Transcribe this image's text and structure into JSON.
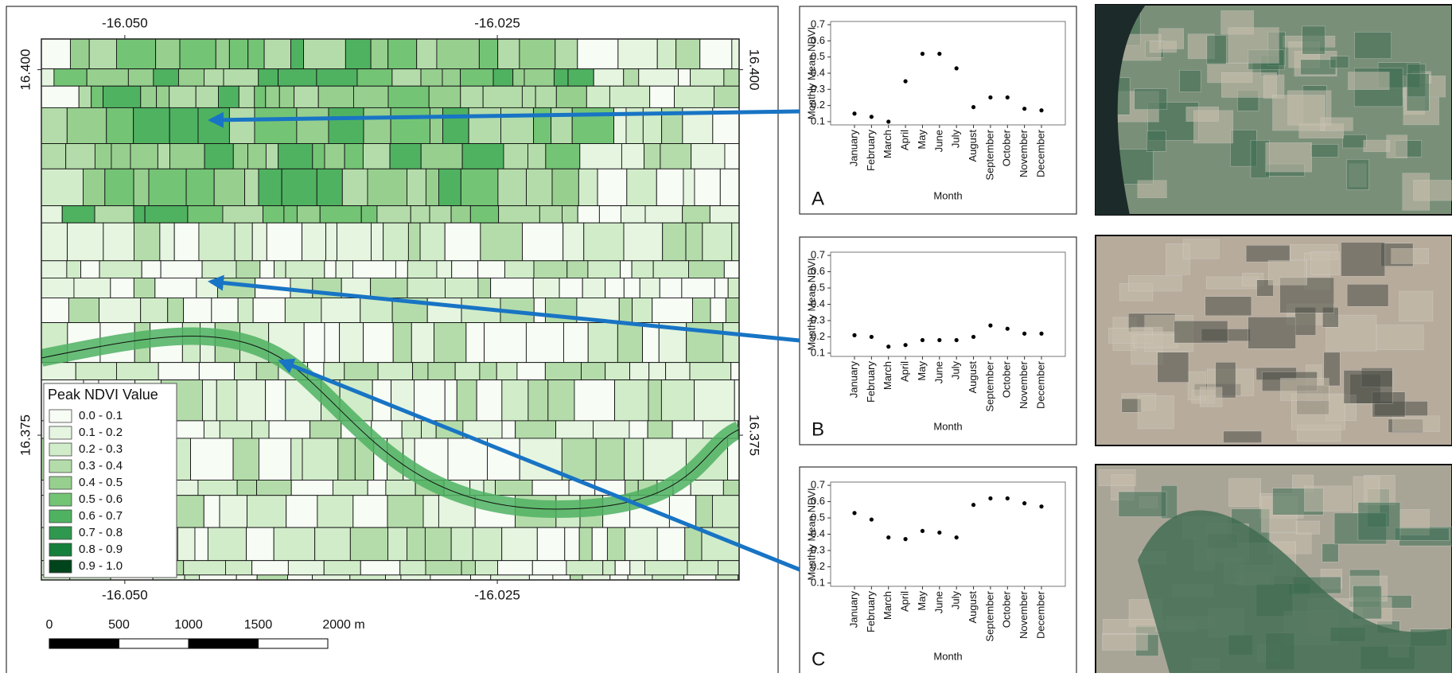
{
  "map": {
    "xlim": [
      -16.0556,
      -16.00877
    ],
    "ylim": [
      16.3651,
      16.4021
    ],
    "xticks": [
      {
        "value": -16.05,
        "label": "-16.050"
      },
      {
        "value": -16.025,
        "label": "-16.025"
      }
    ],
    "yticks": [
      {
        "value": 16.4,
        "label": "16.400"
      },
      {
        "value": 16.375,
        "label": "16.375"
      }
    ],
    "legend": {
      "title": "Peak NDVI Value",
      "items": [
        {
          "label": "0.0 - 0.1",
          "color": "#f7fcf5"
        },
        {
          "label": "0.1 - 0.2",
          "color": "#e5f5e0"
        },
        {
          "label": "0.2 - 0.3",
          "color": "#d1ecc9"
        },
        {
          "label": "0.3 - 0.4",
          "color": "#b4dcaa"
        },
        {
          "label": "0.4 - 0.5",
          "color": "#97cf8f"
        },
        {
          "label": "0.5 - 0.6",
          "color": "#74c476"
        },
        {
          "label": "0.6 - 0.7",
          "color": "#4fb261"
        },
        {
          "label": "0.7 - 0.8",
          "color": "#2f984f"
        },
        {
          "label": "0.8 - 0.9",
          "color": "#157f3b"
        },
        {
          "label": "0.9 - 1.0",
          "color": "#00441b"
        }
      ]
    },
    "scale_bar": {
      "ticks": [
        0,
        500,
        1000,
        1500,
        {
          "value": 2000,
          "label": "2000 m"
        }
      ]
    }
  },
  "chart_data": [
    {
      "type": "scatter",
      "label": "A",
      "xlabel": "Month",
      "ylabel": "Monthly Mean NDVI",
      "color": "#000000",
      "categories": [
        "January",
        "February",
        "March",
        "April",
        "May",
        "June",
        "July",
        "August",
        "September",
        "October",
        "November",
        "December"
      ],
      "values": [
        0.15,
        0.13,
        0.1,
        0.35,
        0.52,
        0.52,
        0.43,
        0.19,
        0.25,
        0.25,
        0.18,
        0.17
      ],
      "ylim": [
        0.08,
        0.72
      ],
      "yticks": [
        0.1,
        0.2,
        0.3,
        0.4,
        0.5,
        0.6,
        0.7
      ]
    },
    {
      "type": "scatter",
      "label": "B",
      "xlabel": "Month",
      "ylabel": "Monthly Mean NDVI",
      "color": "#000000",
      "categories": [
        "January",
        "February",
        "March",
        "April",
        "May",
        "June",
        "July",
        "August",
        "September",
        "October",
        "November",
        "December"
      ],
      "values": [
        0.21,
        0.2,
        0.14,
        0.15,
        0.18,
        0.18,
        0.18,
        0.2,
        0.27,
        0.25,
        0.22,
        0.22
      ],
      "ylim": [
        0.08,
        0.72
      ],
      "yticks": [
        0.1,
        0.2,
        0.3,
        0.4,
        0.5,
        0.6,
        0.7
      ]
    },
    {
      "type": "scatter",
      "label": "C",
      "xlabel": "Month",
      "ylabel": "Monthly Mean NDVI",
      "color": "#000000",
      "categories": [
        "January",
        "February",
        "March",
        "April",
        "May",
        "June",
        "July",
        "August",
        "September",
        "October",
        "November",
        "December"
      ],
      "values": [
        0.53,
        0.49,
        0.38,
        0.37,
        0.42,
        0.41,
        0.38,
        0.58,
        0.62,
        0.62,
        0.59,
        0.57
      ],
      "ylim": [
        0.08,
        0.72
      ],
      "yticks": [
        0.1,
        0.2,
        0.3,
        0.4,
        0.5,
        0.6,
        0.7
      ]
    }
  ]
}
